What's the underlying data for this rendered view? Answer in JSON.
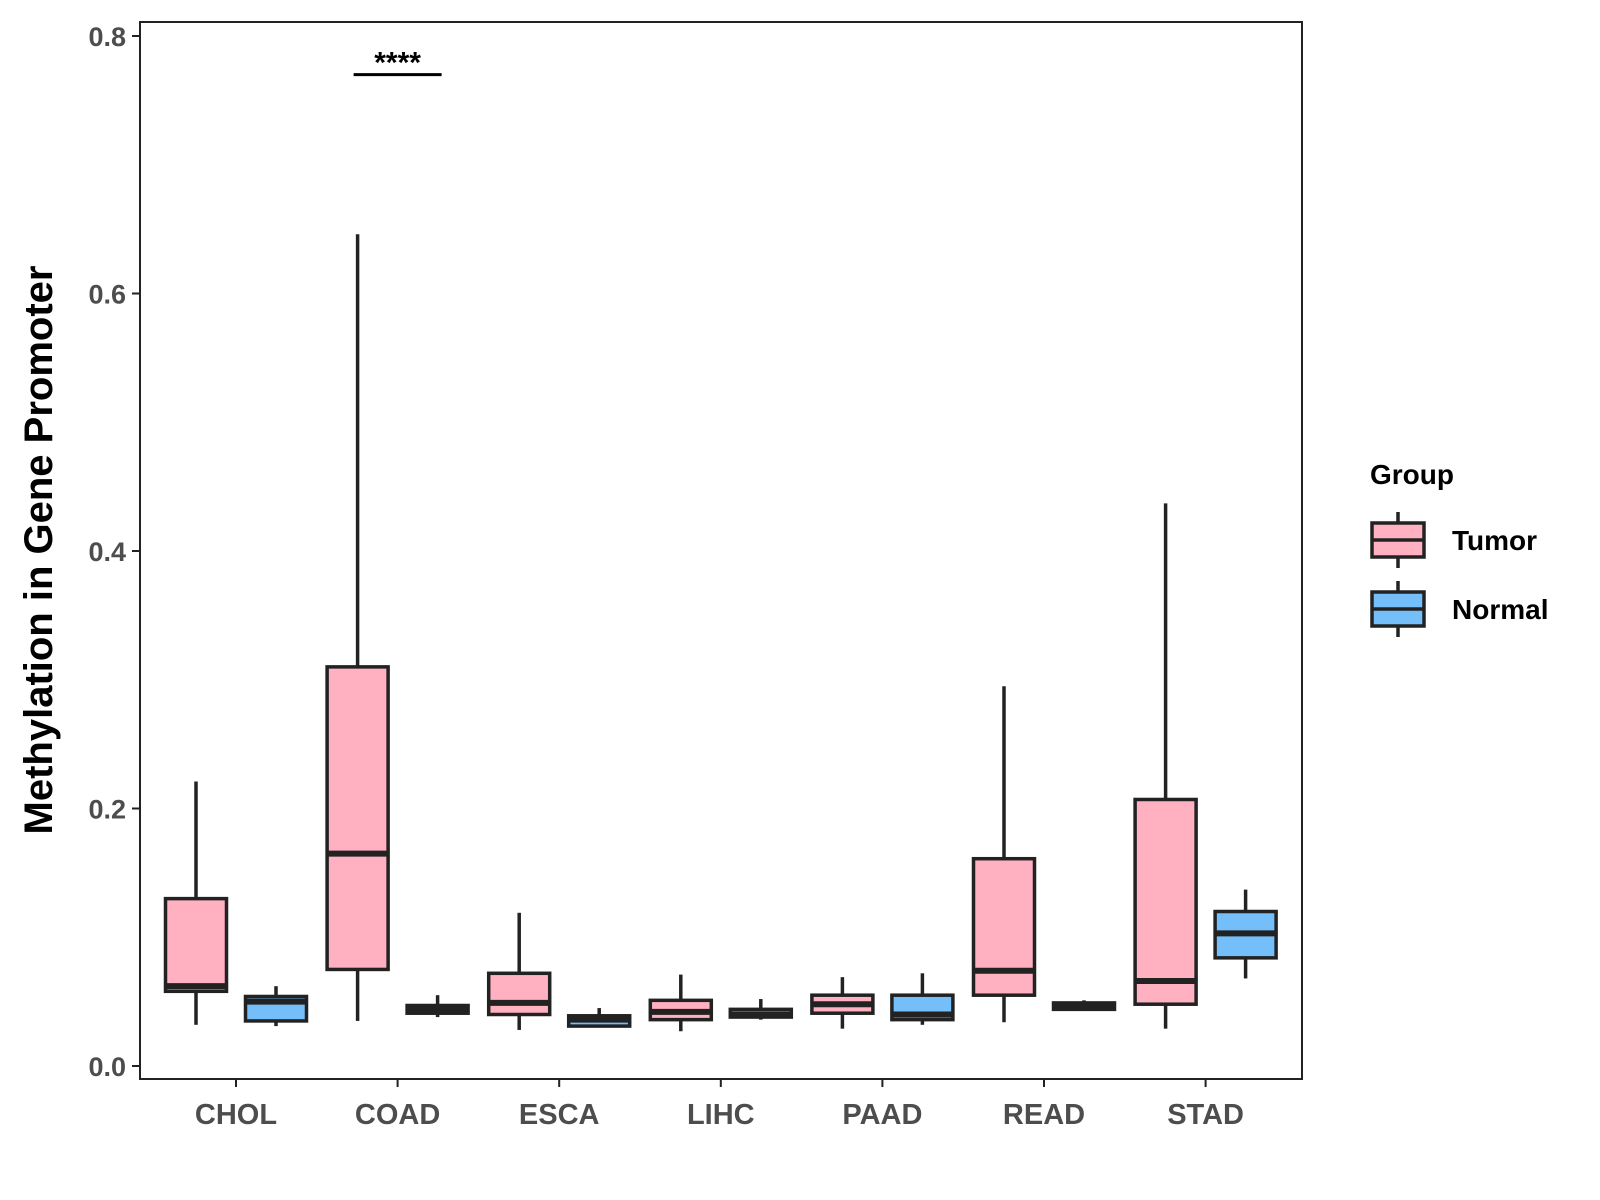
{
  "chart_data": {
    "type": "boxplot",
    "title": "",
    "xlabel": "",
    "ylabel": "Methylation in Gene Promoter",
    "ylim": [
      -0.01,
      0.81
    ],
    "yticks": [
      0.0,
      0.2,
      0.4,
      0.6,
      0.8
    ],
    "ytick_labels": [
      "0.0",
      "0.2",
      "0.4",
      "0.6",
      "0.8"
    ],
    "categories": [
      "CHOL",
      "COAD",
      "ESCA",
      "LIHC",
      "PAAD",
      "READ",
      "STAD"
    ],
    "legend": {
      "title": "Group",
      "position": "right",
      "entries": [
        {
          "name": "Tumor",
          "color": "#FFB0C1"
        },
        {
          "name": "Normal",
          "color": "#74BFFA"
        }
      ]
    },
    "series": [
      {
        "name": "Tumor",
        "color": "#FFB0C1",
        "boxes": [
          {
            "category": "CHOL",
            "min": 0.032,
            "q1": 0.058,
            "median": 0.062,
            "q3": 0.13,
            "max": 0.221
          },
          {
            "category": "COAD",
            "min": 0.035,
            "q1": 0.075,
            "median": 0.165,
            "q3": 0.31,
            "max": 0.646
          },
          {
            "category": "ESCA",
            "min": 0.028,
            "q1": 0.04,
            "median": 0.049,
            "q3": 0.072,
            "max": 0.119
          },
          {
            "category": "LIHC",
            "min": 0.027,
            "q1": 0.036,
            "median": 0.042,
            "q3": 0.051,
            "max": 0.071
          },
          {
            "category": "PAAD",
            "min": 0.029,
            "q1": 0.041,
            "median": 0.048,
            "q3": 0.055,
            "max": 0.069
          },
          {
            "category": "READ",
            "min": 0.034,
            "q1": 0.055,
            "median": 0.074,
            "q3": 0.161,
            "max": 0.295
          },
          {
            "category": "STAD",
            "min": 0.029,
            "q1": 0.048,
            "median": 0.066,
            "q3": 0.207,
            "max": 0.437
          }
        ]
      },
      {
        "name": "Normal",
        "color": "#74BFFA",
        "boxes": [
          {
            "category": "CHOL",
            "min": 0.031,
            "q1": 0.035,
            "median": 0.05,
            "q3": 0.054,
            "max": 0.062
          },
          {
            "category": "COAD",
            "min": 0.038,
            "q1": 0.041,
            "median": 0.044,
            "q3": 0.047,
            "max": 0.055
          },
          {
            "category": "ESCA",
            "min": 0.03,
            "q1": 0.031,
            "median": 0.036,
            "q3": 0.039,
            "max": 0.045
          },
          {
            "category": "LIHC",
            "min": 0.036,
            "q1": 0.038,
            "median": 0.04,
            "q3": 0.044,
            "max": 0.052
          },
          {
            "category": "PAAD",
            "min": 0.032,
            "q1": 0.036,
            "median": 0.04,
            "q3": 0.055,
            "max": 0.072
          },
          {
            "category": "READ",
            "min": 0.043,
            "q1": 0.044,
            "median": 0.047,
            "q3": 0.049,
            "max": 0.051
          },
          {
            "category": "STAD",
            "min": 0.068,
            "q1": 0.084,
            "median": 0.103,
            "q3": 0.12,
            "max": 0.137
          }
        ]
      }
    ],
    "annotations": [
      {
        "category": "COAD",
        "text": "****",
        "y": 0.77
      }
    ]
  }
}
